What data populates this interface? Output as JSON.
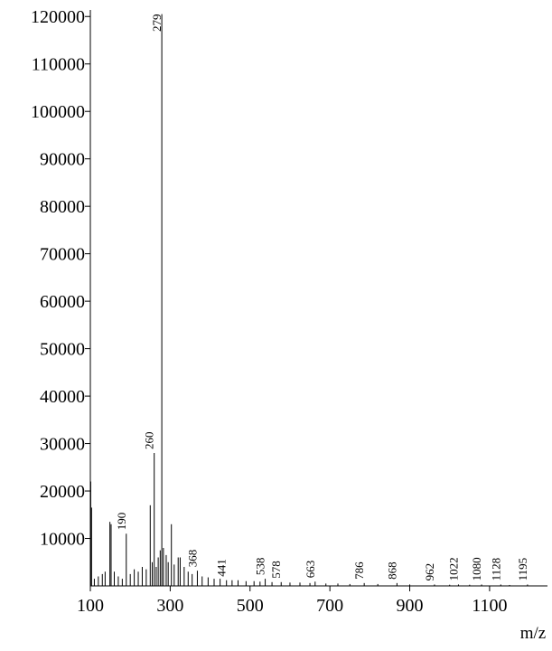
{
  "chart_data": {
    "type": "spectrum",
    "x_label": "m/z",
    "xlim": [
      100,
      1245
    ],
    "ylim": [
      0,
      121000
    ],
    "xticks": [
      100,
      300,
      500,
      700,
      900,
      1100
    ],
    "yticks": [
      10000,
      20000,
      30000,
      40000,
      50000,
      60000,
      70000,
      80000,
      90000,
      100000,
      110000,
      120000
    ],
    "series": [
      {
        "color": "#000000",
        "labels": true,
        "x": [
          190,
          260,
          279,
          368,
          441,
          538,
          578,
          663,
          786,
          868,
          962,
          1022,
          1080,
          1128,
          1195
        ],
        "values": [
          11000,
          28000,
          120500,
          3200,
          1200,
          1500,
          800,
          900,
          600,
          600,
          300,
          300,
          300,
          300,
          300
        ]
      },
      {
        "color": "#000000",
        "labels": false,
        "x": [
          101,
          103,
          110,
          120,
          130,
          137,
          149,
          152,
          160,
          170,
          180,
          200,
          210,
          220,
          230,
          240,
          250,
          255,
          265,
          270,
          275,
          283,
          290,
          295,
          303,
          310,
          320,
          325,
          335,
          345,
          355,
          380,
          395,
          410,
          425,
          455,
          470,
          490,
          510,
          525,
          555,
          600,
          625,
          650,
          690,
          720,
          750,
          820,
          900,
          1000,
          1050,
          1150
        ],
        "values": [
          22000,
          16500,
          1500,
          2000,
          2500,
          3000,
          13500,
          13000,
          3000,
          2000,
          1500,
          2500,
          3500,
          3000,
          4000,
          3500,
          17000,
          5000,
          4000,
          6000,
          7500,
          8000,
          6500,
          5000,
          13000,
          4500,
          6000,
          6000,
          4000,
          3000,
          2500,
          2000,
          1800,
          1500,
          1500,
          1200,
          1200,
          1000,
          1000,
          900,
          800,
          700,
          700,
          600,
          500,
          500,
          400,
          400,
          300,
          250,
          250,
          200
        ]
      }
    ]
  }
}
